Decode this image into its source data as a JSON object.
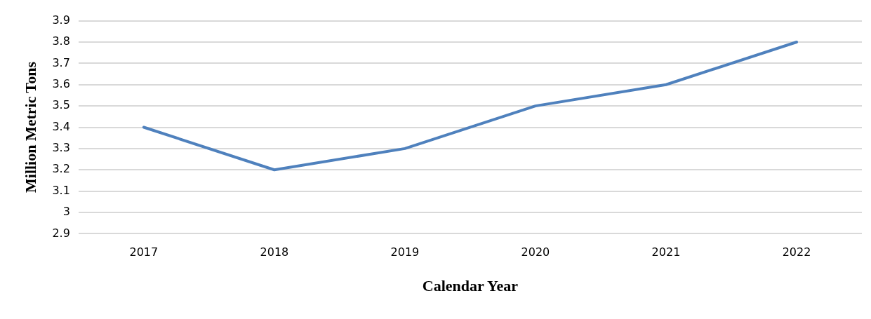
{
  "chart_data": {
    "type": "line",
    "xlabel": "Calendar Year",
    "ylabel": "Million Metric Tons",
    "categories": [
      "2017",
      "2018",
      "2019",
      "2020",
      "2021",
      "2022"
    ],
    "series": [
      {
        "color": "#4f81bd",
        "values": [
          3.4,
          3.2,
          3.3,
          3.5,
          3.6,
          3.8
        ]
      }
    ],
    "ylim": [
      2.9,
      3.9
    ],
    "yticks": [
      2.9,
      3,
      3.1,
      3.2,
      3.3,
      3.4,
      3.5,
      3.6,
      3.7,
      3.8,
      3.9
    ],
    "grid": "y",
    "legend": false,
    "marker": "none",
    "line_style": "solid"
  }
}
